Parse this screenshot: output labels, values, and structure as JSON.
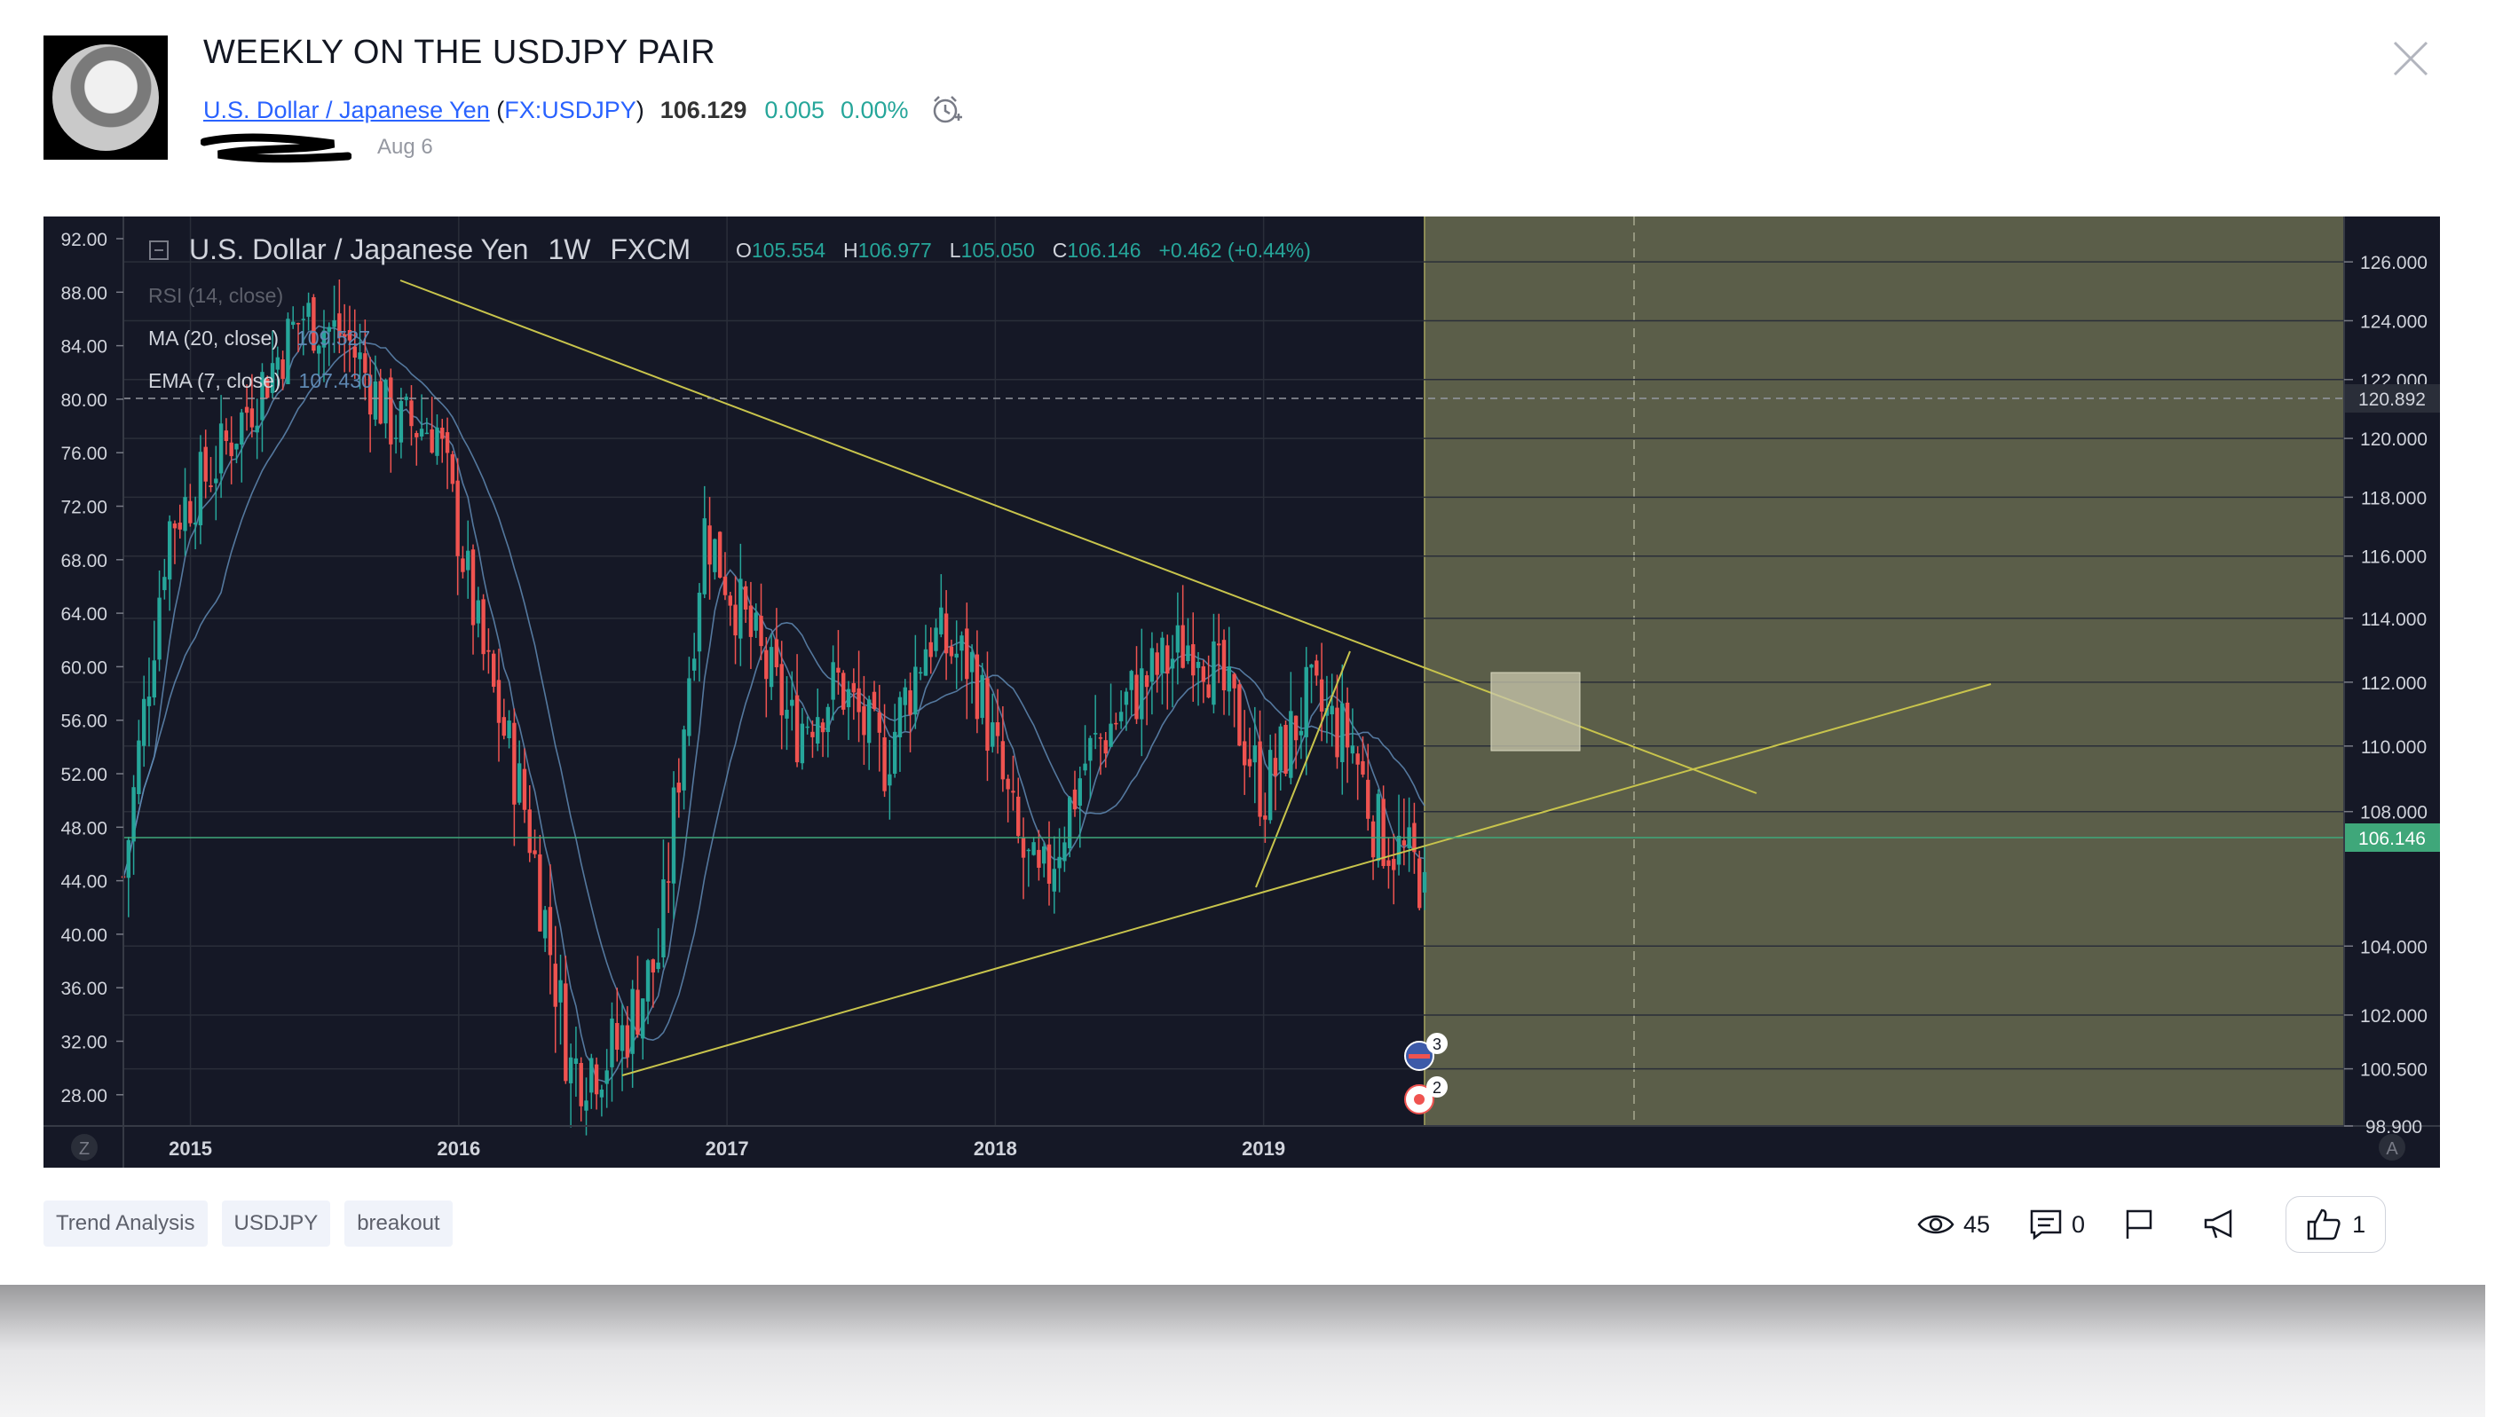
{
  "idea": {
    "title": "WEEKLY ON THE USDJPY PAIR",
    "symbol_name": "U.S. Dollar / Japanese Yen",
    "symbol_ticker": "FX:USDJPY",
    "price": "106.129",
    "change": "0.005",
    "change_percent": "0.00%",
    "date": "Aug 6"
  },
  "tags": [
    "Trend Analysis",
    "USDJPY",
    "breakout"
  ],
  "stats": {
    "views": "45",
    "comments": "0",
    "likes": "1"
  },
  "legend": {
    "title": "U.S. Dollar / Japanese Yen",
    "interval": "1W",
    "exchange": "FXCM",
    "o_label": "O",
    "o": "105.554",
    "h_label": "H",
    "h": "106.977",
    "l_label": "L",
    "l": "105.050",
    "c_label": "C",
    "c": "106.146",
    "change": "+0.462 (+0.44%)",
    "rsi": "RSI (14, close)",
    "ma": "MA (20, close)",
    "ma_value": "109.527",
    "ema": "EMA (7, close)",
    "ema_value": "107.430"
  },
  "corner_labels": {
    "left": "Z",
    "right": "A"
  },
  "colors": {
    "chart_bg": "#151826",
    "projection_bg": "#5b5e49",
    "up": "#26a69a",
    "down": "#ef5350",
    "trendline": "#c8c44c",
    "ma": "#5f89b4",
    "price_tag": "#3fa77a"
  },
  "chart_data": {
    "type": "candlestick",
    "interval": "1W",
    "x_ticks": [
      "2015",
      "2016",
      "2017",
      "2018",
      "2019"
    ],
    "right_axis_ticks": [
      "126.000",
      "124.000",
      "122.000",
      "120.000",
      "118.000",
      "116.000",
      "114.000",
      "112.000",
      "110.000",
      "108.000",
      "104.000",
      "102.000",
      "100.500",
      "98.900"
    ],
    "left_axis_ticks": [
      "92.00",
      "88.00",
      "84.00",
      "80.00",
      "76.00",
      "72.00",
      "68.00",
      "64.00",
      "60.00",
      "56.00",
      "52.00",
      "48.00",
      "44.00",
      "40.00",
      "36.00",
      "32.00",
      "28.00"
    ],
    "right_axis_labels": {
      "dashed_level": "120.892",
      "last_price": "106.146"
    },
    "last_close": 106.146,
    "ohlc_last": {
      "open": 105.554,
      "high": 106.977,
      "low": 105.05,
      "close": 106.146
    },
    "close_path": [
      [
        "2014-10",
        106
      ],
      [
        "2014-12",
        117
      ],
      [
        "2015-02",
        119
      ],
      [
        "2015-06",
        124.2
      ],
      [
        "2015-08",
        123.4
      ],
      [
        "2015-10",
        120.5
      ],
      [
        "2015-12",
        120.4
      ],
      [
        "2016-02",
        113
      ],
      [
        "2016-04",
        108
      ],
      [
        "2016-06",
        100.5
      ],
      [
        "2016-08",
        101
      ],
      [
        "2016-10",
        103.8
      ],
      [
        "2016-12",
        117
      ],
      [
        "2017-02",
        113.5
      ],
      [
        "2017-04",
        110.5
      ],
      [
        "2017-06",
        112
      ],
      [
        "2017-08",
        109.5
      ],
      [
        "2017-10",
        113.5
      ],
      [
        "2017-12",
        112.5
      ],
      [
        "2018-02",
        107
      ],
      [
        "2018-03",
        105.5
      ],
      [
        "2018-05",
        109.5
      ],
      [
        "2018-07",
        111.5
      ],
      [
        "2018-10",
        113.5
      ],
      [
        "2018-12",
        110.5
      ],
      [
        "2019-01",
        108.5
      ],
      [
        "2019-03",
        111.5
      ],
      [
        "2019-05",
        110
      ],
      [
        "2019-06",
        107.5
      ],
      [
        "2019-08",
        106.1
      ]
    ],
    "lines": {
      "ma_label": "MA (20, close)",
      "ema_label": "EMA (7, close)"
    },
    "markers": {
      "events_us": "3",
      "events_jp": "2"
    },
    "grid": true,
    "legend_position": "top-left"
  }
}
